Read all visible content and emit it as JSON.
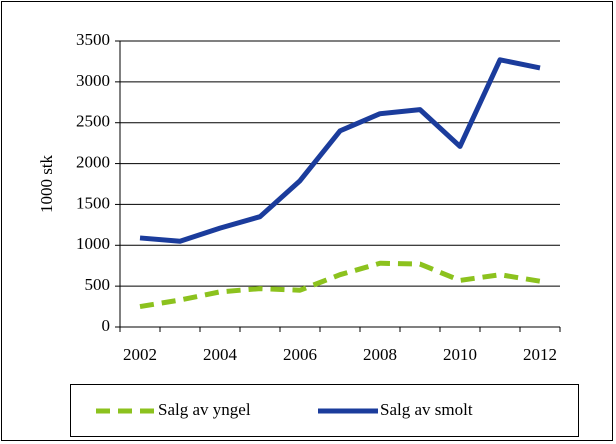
{
  "chart_data": {
    "type": "line",
    "ylabel": "1000 stk",
    "categories": [
      "2002",
      null,
      "2004",
      null,
      "2006",
      null,
      "2008",
      null,
      "2010",
      null,
      "2012"
    ],
    "series": [
      {
        "name": "Salg av yngel",
        "color": "#8cc21e",
        "dashed": true,
        "values": [
          250,
          330,
          430,
          470,
          450,
          640,
          780,
          770,
          570,
          640,
          560
        ]
      },
      {
        "name": "Salg av smolt",
        "color": "#1b3c9c",
        "dashed": false,
        "values": [
          1090,
          1050,
          1210,
          1350,
          1790,
          2400,
          2610,
          2660,
          2210,
          3270,
          3170
        ]
      }
    ],
    "ylim": [
      0,
      3500
    ],
    "yticks": [
      0,
      500,
      1000,
      1500,
      2000,
      2500,
      3000,
      3500
    ],
    "grid": true
  }
}
